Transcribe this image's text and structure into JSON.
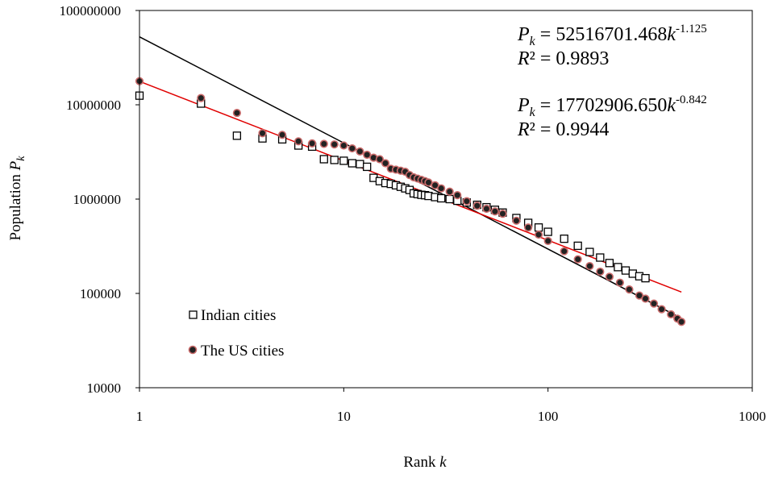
{
  "chart_data": {
    "type": "scatter",
    "xscale": "log",
    "yscale": "log",
    "xlim": [
      1,
      1000
    ],
    "ylim": [
      10000,
      100000000
    ],
    "xlabel": {
      "prefix": "Rank ",
      "var": "k"
    },
    "ylabel": {
      "prefix": "Population ",
      "var": "P",
      "sub": "k"
    },
    "x_ticks": [
      {
        "value": 1,
        "label": "1"
      },
      {
        "value": 10,
        "label": "10"
      },
      {
        "value": 100,
        "label": "100"
      },
      {
        "value": 1000,
        "label": "1000"
      }
    ],
    "y_ticks": [
      {
        "value": 10000,
        "label": "10000"
      },
      {
        "value": 100000,
        "label": "100000"
      },
      {
        "value": 1000000,
        "label": "1000000"
      },
      {
        "value": 10000000,
        "label": "10000000"
      },
      {
        "value": 100000000,
        "label": "100000000"
      }
    ],
    "grid": false,
    "legend_position": "bottom-left",
    "series": [
      {
        "name": "Indian cities",
        "marker": "open-square",
        "color": "#000000",
        "points": [
          [
            1,
            12500000
          ],
          [
            2,
            10300000
          ],
          [
            3,
            4700000
          ],
          [
            4,
            4400000
          ],
          [
            5,
            4300000
          ],
          [
            6,
            3700000
          ],
          [
            7,
            3600000
          ],
          [
            8,
            2650000
          ],
          [
            9,
            2600000
          ],
          [
            10,
            2550000
          ],
          [
            11,
            2400000
          ],
          [
            12,
            2350000
          ],
          [
            13,
            2200000
          ],
          [
            14,
            1680000
          ],
          [
            15,
            1550000
          ],
          [
            16,
            1480000
          ],
          [
            17,
            1450000
          ],
          [
            18,
            1400000
          ],
          [
            19,
            1350000
          ],
          [
            20,
            1300000
          ],
          [
            21,
            1250000
          ],
          [
            22,
            1150000
          ],
          [
            23,
            1130000
          ],
          [
            24,
            1110000
          ],
          [
            25,
            1100000
          ],
          [
            26,
            1080000
          ],
          [
            28,
            1050000
          ],
          [
            30,
            1020000
          ],
          [
            33,
            1000000
          ],
          [
            36,
            960000
          ],
          [
            40,
            920000
          ],
          [
            45,
            870000
          ],
          [
            50,
            820000
          ],
          [
            55,
            770000
          ],
          [
            60,
            720000
          ],
          [
            70,
            630000
          ],
          [
            80,
            560000
          ],
          [
            90,
            500000
          ],
          [
            100,
            450000
          ],
          [
            120,
            380000
          ],
          [
            140,
            320000
          ],
          [
            160,
            275000
          ],
          [
            180,
            240000
          ],
          [
            200,
            210000
          ],
          [
            220,
            190000
          ],
          [
            240,
            175000
          ],
          [
            260,
            162000
          ],
          [
            280,
            152000
          ],
          [
            300,
            145000
          ]
        ],
        "fit": {
          "coef": 52516701.468,
          "exp": -1.125,
          "x_range": [
            1,
            450
          ],
          "color": "#000000",
          "equation": {
            "lhs": "P",
            "lhs_sub": "k",
            "eq": " = ",
            "coef": "52516701.468",
            "var": "k",
            "exp": "-1.125"
          },
          "r2": {
            "r": "R",
            "rest": "² = 0.9893"
          }
        }
      },
      {
        "name": "The US cities",
        "marker": "filled-circle",
        "color": "#b04848",
        "points": [
          [
            1,
            17800000
          ],
          [
            2,
            11800000
          ],
          [
            3,
            8200000
          ],
          [
            4,
            5000000
          ],
          [
            5,
            4800000
          ],
          [
            6,
            4100000
          ],
          [
            7,
            3900000
          ],
          [
            8,
            3850000
          ],
          [
            9,
            3800000
          ],
          [
            10,
            3700000
          ],
          [
            11,
            3450000
          ],
          [
            12,
            3200000
          ],
          [
            13,
            2950000
          ],
          [
            14,
            2750000
          ],
          [
            15,
            2650000
          ],
          [
            16,
            2400000
          ],
          [
            17,
            2100000
          ],
          [
            18,
            2050000
          ],
          [
            19,
            2000000
          ],
          [
            20,
            1950000
          ],
          [
            21,
            1800000
          ],
          [
            22,
            1700000
          ],
          [
            23,
            1650000
          ],
          [
            24,
            1600000
          ],
          [
            25,
            1550000
          ],
          [
            26,
            1500000
          ],
          [
            28,
            1400000
          ],
          [
            30,
            1300000
          ],
          [
            33,
            1200000
          ],
          [
            36,
            1100000
          ],
          [
            40,
            950000
          ],
          [
            45,
            850000
          ],
          [
            50,
            790000
          ],
          [
            55,
            740000
          ],
          [
            60,
            700000
          ],
          [
            70,
            590000
          ],
          [
            80,
            500000
          ],
          [
            90,
            420000
          ],
          [
            100,
            360000
          ],
          [
            120,
            280000
          ],
          [
            140,
            230000
          ],
          [
            160,
            195000
          ],
          [
            180,
            170000
          ],
          [
            200,
            150000
          ],
          [
            225,
            130000
          ],
          [
            250,
            110000
          ],
          [
            280,
            95000
          ],
          [
            300,
            88000
          ],
          [
            330,
            78000
          ],
          [
            360,
            68000
          ],
          [
            400,
            60000
          ],
          [
            430,
            54000
          ],
          [
            450,
            50000
          ]
        ],
        "fit": {
          "coef": 17702906.65,
          "exp": -0.842,
          "x_range": [
            1,
            450
          ],
          "color": "#e00000",
          "equation": {
            "lhs": "P",
            "lhs_sub": "k",
            "eq": " = ",
            "coef": "17702906.650",
            "var": "k",
            "exp": "-0.842"
          },
          "r2": {
            "r": "R",
            "rest": "² = 0.9944"
          }
        }
      }
    ]
  }
}
